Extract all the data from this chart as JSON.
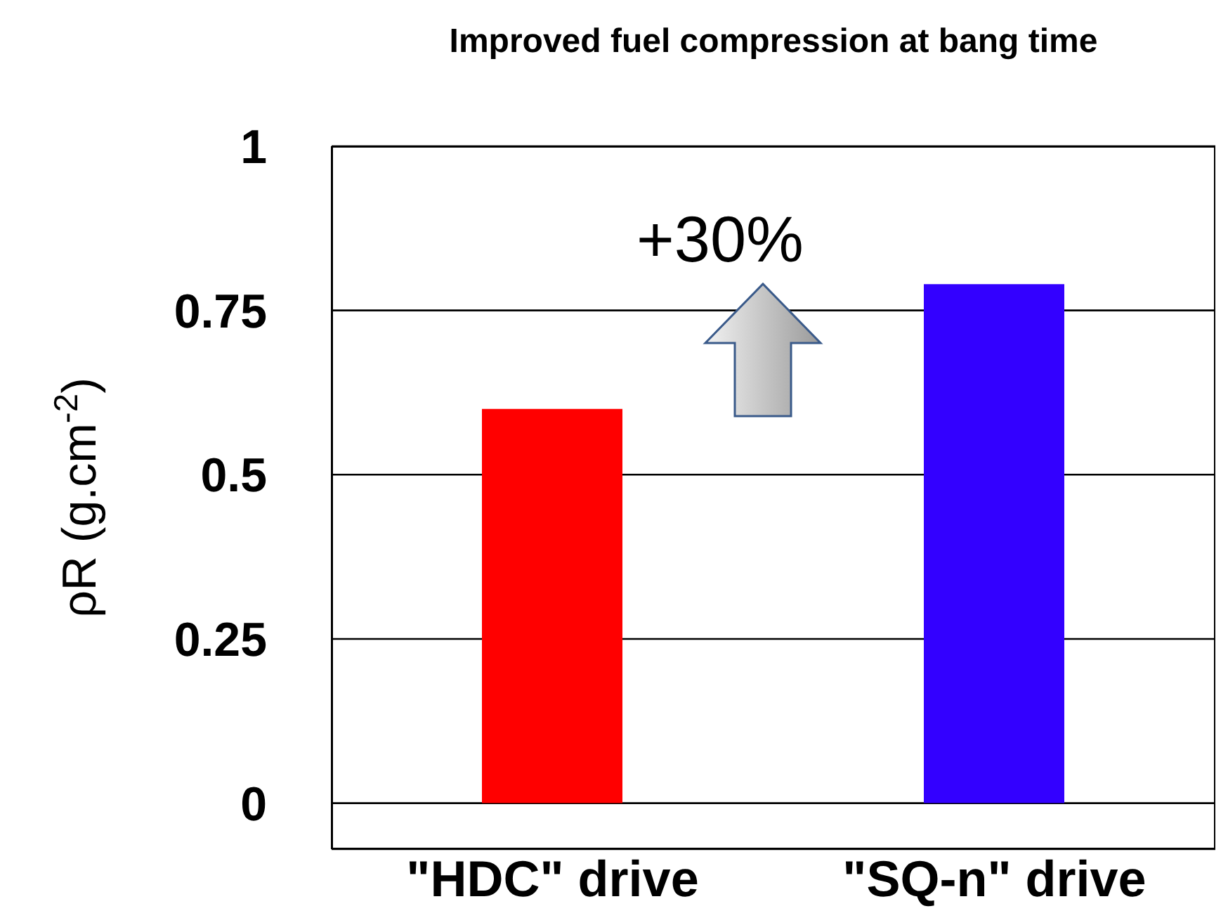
{
  "chart_data": {
    "type": "bar",
    "title": "Improved fuel compression at bang time",
    "ylabel": "ρR (g.cm$^{-2}$)",
    "categories": [
      "\"HDC\" drive",
      "\"SQ-n\" drive"
    ],
    "values": [
      0.6,
      0.79
    ],
    "colors": [
      "#ff0000",
      "#3300ff"
    ],
    "ylim": [
      -0.07,
      1
    ],
    "yticks": [
      0,
      0.25,
      0.5,
      0.75,
      1
    ],
    "grid": "y",
    "annotations": [
      "+30%"
    ]
  }
}
